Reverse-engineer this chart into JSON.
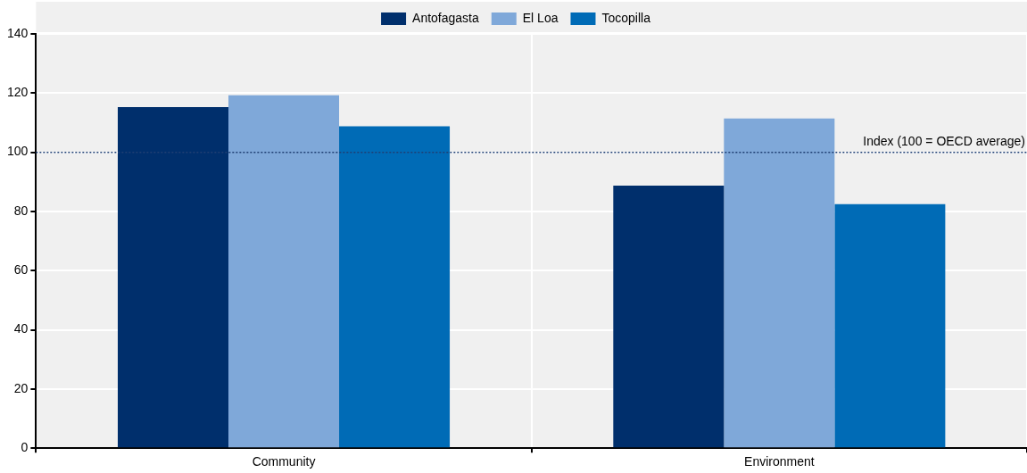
{
  "chart_data": {
    "type": "bar",
    "categories": [
      "Community",
      "Environment"
    ],
    "series": [
      {
        "name": "Antofagasta",
        "color": "#002f6c",
        "values": [
          115.3,
          88.7
        ]
      },
      {
        "name": "El Loa",
        "color": "#7fa8d9",
        "values": [
          119.3,
          111.4
        ]
      },
      {
        "name": "Tocopilla",
        "color": "#006bb6",
        "values": [
          108.8,
          82.5
        ]
      }
    ],
    "ylim": [
      0,
      140
    ],
    "yticks": [
      0,
      20,
      40,
      60,
      80,
      100,
      120,
      140
    ],
    "grid": true,
    "legend": "top",
    "ref_lines": [
      {
        "axis": "y",
        "value": 100,
        "label": "Index (100 = OECD average)",
        "color": "#1f3f73",
        "line_style": "dotted"
      }
    ]
  }
}
